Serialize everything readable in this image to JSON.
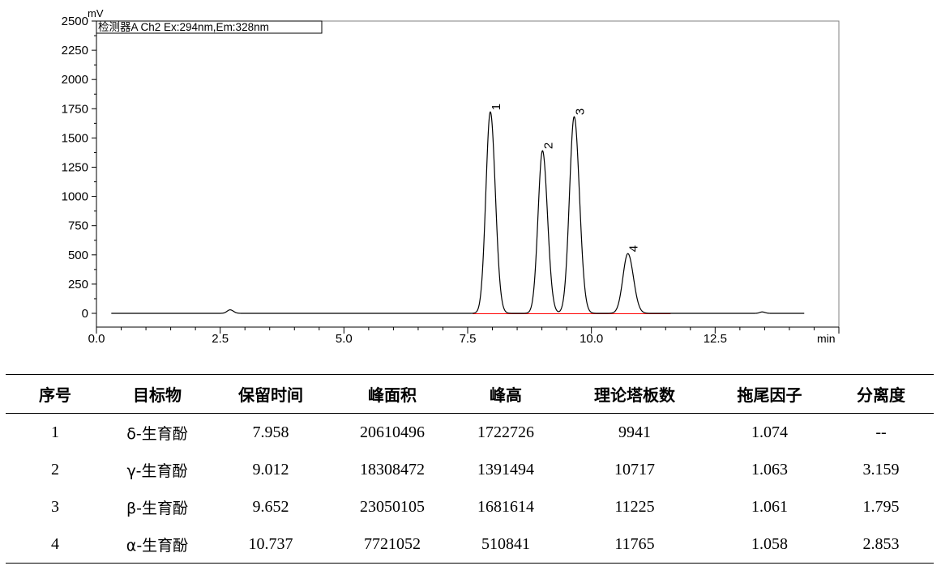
{
  "chart_data": {
    "type": "line",
    "legend": "检测器A Ch2 Ex:294nm,Em:328nm",
    "legend_position": "top-left",
    "ylabel": "mV",
    "xlabel": "min",
    "xlim": [
      0.0,
      15.0
    ],
    "ylim": [
      -100,
      2500
    ],
    "x_ticks": [
      "0.0",
      "2.5",
      "5.0",
      "7.5",
      "10.0",
      "12.5"
    ],
    "y_ticks": [
      "0",
      "250",
      "500",
      "750",
      "1000",
      "1250",
      "1500",
      "1750",
      "2000",
      "2250",
      "2500"
    ],
    "grid": false,
    "colors": {
      "signal": "#000000",
      "baseline": "#ff0000"
    },
    "peaks": [
      {
        "label": "1",
        "rt": 7.958,
        "height": 1723,
        "width": 0.09
      },
      {
        "label": "2",
        "rt": 9.012,
        "height": 1391,
        "width": 0.09
      },
      {
        "label": "3",
        "rt": 9.652,
        "height": 1682,
        "width": 0.095
      },
      {
        "label": "4",
        "rt": 10.737,
        "height": 511,
        "width": 0.1
      }
    ],
    "minor_peaks": [
      {
        "rt": 2.7,
        "height": 30,
        "width": 0.06
      },
      {
        "rt": 13.45,
        "height": 12,
        "width": 0.05
      }
    ],
    "baseline_segment": [
      7.6,
      11.6
    ]
  },
  "table": {
    "headers": [
      "序号",
      "目标物",
      "保留时间",
      "峰面积",
      "峰高",
      "理论塔板数",
      "拖尾因子",
      "分离度"
    ],
    "rows": [
      [
        "1",
        "δ-生育酚",
        "7.958",
        "20610496",
        "1722726",
        "9941",
        "1.074",
        "--"
      ],
      [
        "2",
        "γ-生育酚",
        "9.012",
        "18308472",
        "1391494",
        "10717",
        "1.063",
        "3.159"
      ],
      [
        "3",
        "β-生育酚",
        "9.652",
        "23050105",
        "1681614",
        "11225",
        "1.061",
        "1.795"
      ],
      [
        "4",
        "α-生育酚",
        "10.737",
        "7721052",
        "510841",
        "11765",
        "1.058",
        "2.853"
      ]
    ]
  }
}
